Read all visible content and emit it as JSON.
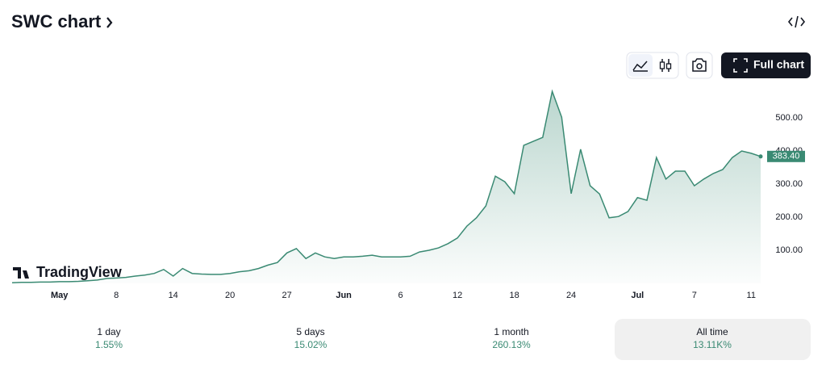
{
  "header": {
    "title": "SWC chart",
    "button": "Full chart"
  },
  "chart_data": {
    "type": "line",
    "watermark": "TradingView",
    "color": "#3a8a73",
    "x": [
      0,
      1,
      2,
      3,
      4,
      5,
      6,
      7,
      8,
      9,
      10,
      11,
      12,
      13,
      14,
      15,
      16,
      17,
      18,
      19,
      20,
      21,
      22,
      23,
      24,
      25,
      26,
      27,
      28,
      29,
      30,
      31,
      32,
      33,
      34,
      35,
      36,
      37,
      38,
      39,
      40,
      41,
      42,
      43,
      44,
      45,
      46,
      47,
      48,
      49,
      50,
      51,
      52,
      53,
      54,
      55,
      56,
      57,
      58,
      59,
      60,
      61,
      62,
      63,
      64,
      65,
      66,
      67,
      68,
      69,
      70,
      71,
      72,
      73,
      74,
      75,
      76,
      77,
      78,
      79
    ],
    "values": [
      2,
      3,
      3,
      4,
      4,
      5,
      5,
      6,
      8,
      10,
      15,
      16,
      18,
      22,
      25,
      30,
      42,
      22,
      45,
      30,
      28,
      27,
      27,
      30,
      35,
      38,
      45,
      55,
      63,
      92,
      105,
      75,
      92,
      80,
      75,
      80,
      80,
      82,
      85,
      80,
      80,
      80,
      82,
      95,
      100,
      107,
      120,
      137,
      173,
      198,
      234,
      324,
      307,
      271,
      417,
      429,
      441,
      580,
      502,
      271,
      405,
      295,
      270,
      198,
      202,
      217,
      259,
      251,
      380,
      315,
      339,
      339,
      295,
      315,
      332,
      344,
      380,
      400,
      393,
      383.4
    ],
    "last_price": {
      "value": 383.4,
      "label": "383.40"
    },
    "xlim": [
      0,
      79
    ],
    "xticks": [
      {
        "value": 5,
        "label": "May"
      },
      {
        "value": 11,
        "label": "8"
      },
      {
        "value": 17,
        "label": "14"
      },
      {
        "value": 23,
        "label": "20"
      },
      {
        "value": 29,
        "label": "27"
      },
      {
        "value": 35,
        "label": "Jun"
      },
      {
        "value": 41,
        "label": "6"
      },
      {
        "value": 47,
        "label": "12"
      },
      {
        "value": 53,
        "label": "18"
      },
      {
        "value": 59,
        "label": "24"
      },
      {
        "value": 66,
        "label": "Jul"
      },
      {
        "value": 72,
        "label": "7"
      },
      {
        "value": 78,
        "label": "11"
      }
    ],
    "ylim": [
      0,
      600
    ],
    "yticks": [
      {
        "value": 100,
        "label": "100.00"
      },
      {
        "value": 200,
        "label": "200.00"
      },
      {
        "value": 300,
        "label": "300.00"
      },
      {
        "value": 400,
        "label": "400.00"
      },
      {
        "value": 500,
        "label": "500.00"
      }
    ]
  },
  "periods": [
    {
      "label": "1 day",
      "change": "1.55%"
    },
    {
      "label": "5 days",
      "change": "15.02%"
    },
    {
      "label": "1 month",
      "change": "260.13%"
    },
    {
      "label": "All time",
      "change": "13.11K%",
      "selected": true
    }
  ]
}
